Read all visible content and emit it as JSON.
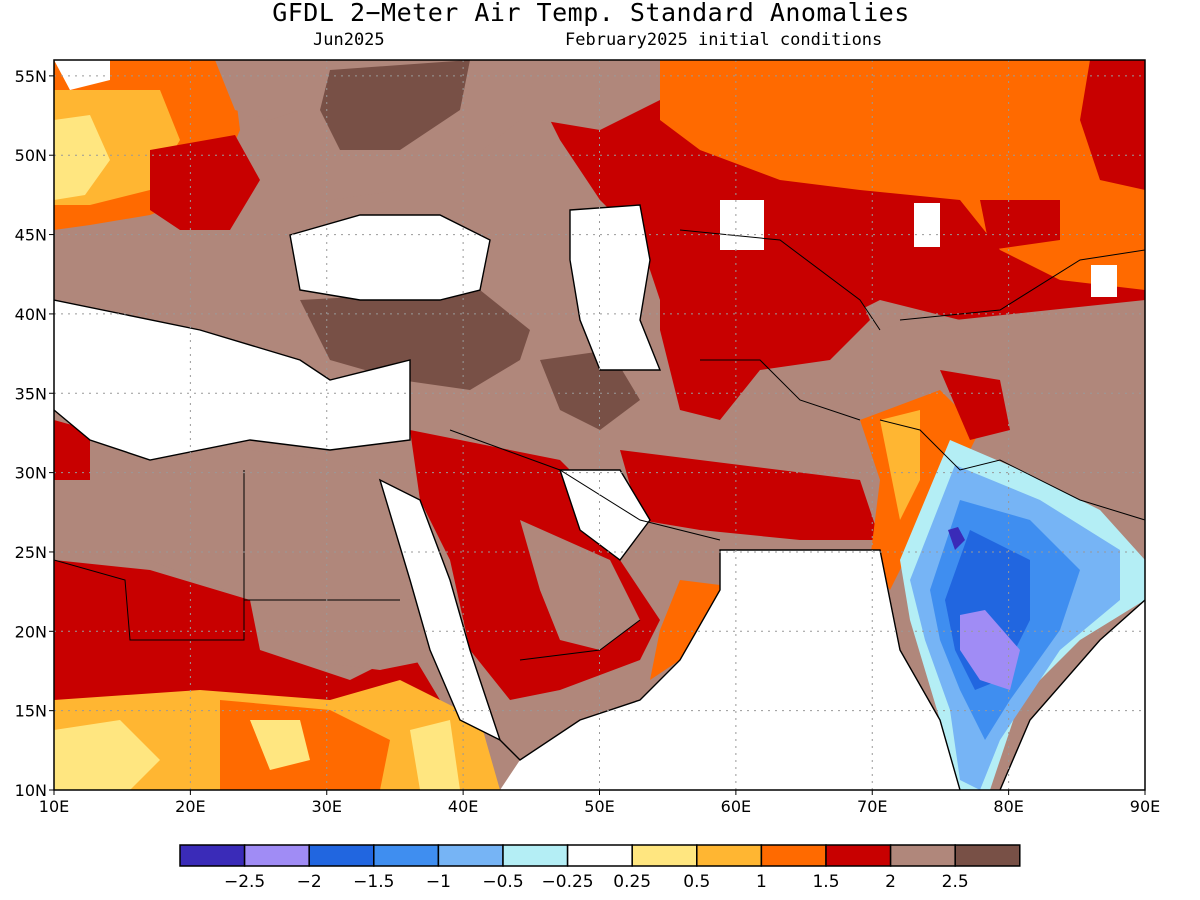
{
  "title": "GFDL 2−Meter Air Temp. Standard Anomalies",
  "subtitle_left": "Jun2025",
  "subtitle_right": "February2025 initial conditions",
  "axes": {
    "x_ticks": [
      "10E",
      "20E",
      "30E",
      "40E",
      "50E",
      "60E",
      "70E",
      "80E",
      "90E"
    ],
    "y_ticks": [
      "55N",
      "50N",
      "45N",
      "40N",
      "35N",
      "30N",
      "25N",
      "20N",
      "15N",
      "10N"
    ],
    "lon_range": [
      10,
      90
    ],
    "lat_range": [
      10,
      56
    ],
    "grid": "dotted"
  },
  "colorbar": {
    "colors": [
      "#3a2bb8",
      "#a08cf5",
      "#2166e0",
      "#3f8ef0",
      "#76b4f5",
      "#b4eef5",
      "#ffffff",
      "#ffe680",
      "#ffb632",
      "#ff6a00",
      "#c80000",
      "#b0877b",
      "#785046"
    ],
    "labels": [
      "−2.5",
      "−2",
      "−1.5",
      "−1",
      "−0.5",
      "−0.25",
      "0.25",
      "0.5",
      "1",
      "1.5",
      "2",
      "2.5"
    ]
  },
  "palette": {
    "white": "#ffffff",
    "yellow": "#ffe680",
    "lightorange": "#ffb632",
    "orange": "#ff6a00",
    "red": "#c80000",
    "brownlight": "#b0877b",
    "browndark": "#785046",
    "blue_light": "#76b4f5",
    "blue_mid": "#3f8ef0",
    "blue": "#2166e0",
    "purple_light": "#a08cf5",
    "purple_dark": "#3a2bb8",
    "cyan": "#b4eef5"
  }
}
